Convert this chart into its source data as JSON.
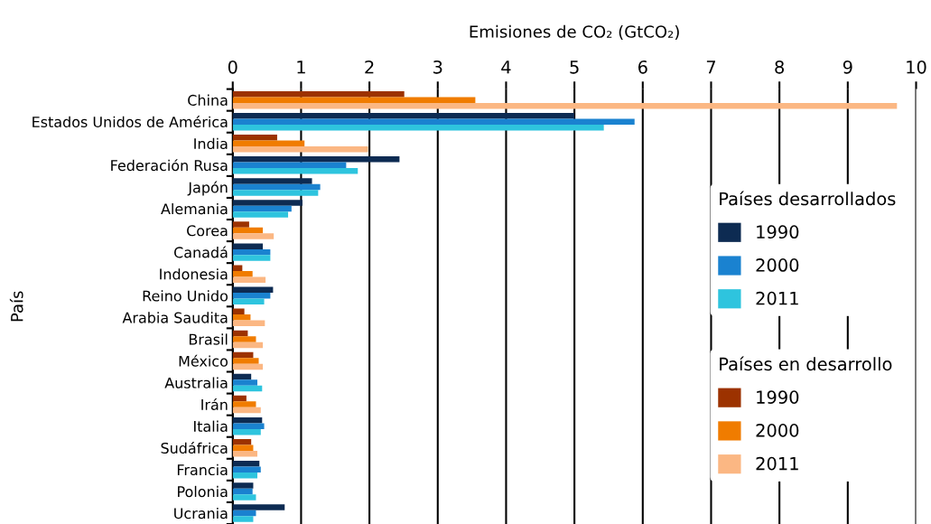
{
  "chart_data": {
    "type": "bar",
    "orientation": "horizontal",
    "xlabel": "Emisiones de CO₂ (GtCO₂)",
    "ylabel": "País",
    "categories": [
      "China",
      "Estados Unidos de América",
      "India",
      "Federación Rusa",
      "Japón",
      "Alemania",
      "Corea",
      "Canadá",
      "Indonesia",
      "Reino Unido",
      "Arabia Saudita",
      "Brasil",
      "México",
      "Australia",
      "Irán",
      "Italia",
      "Sudáfrica",
      "Francia",
      "Polonia",
      "Ucrania"
    ],
    "series": [
      {
        "name": "1990",
        "color": "#0d2b52",
        "values": [
          null,
          5.0,
          null,
          2.44,
          1.16,
          1.02,
          null,
          0.44,
          null,
          0.59,
          null,
          null,
          null,
          0.27,
          null,
          0.43,
          null,
          0.39,
          0.3,
          0.76
        ]
      },
      {
        "name": "2000",
        "color": "#1a82d0",
        "values": [
          null,
          5.88,
          null,
          1.66,
          1.28,
          0.86,
          null,
          0.55,
          null,
          0.55,
          null,
          null,
          null,
          0.36,
          null,
          0.46,
          null,
          0.41,
          0.29,
          0.34
        ]
      },
      {
        "name": "2011",
        "color": "#2ec4de",
        "values": [
          null,
          5.43,
          null,
          1.83,
          1.25,
          0.81,
          null,
          0.55,
          null,
          0.46,
          null,
          null,
          null,
          0.43,
          null,
          0.41,
          null,
          0.36,
          0.34,
          0.3
        ]
      },
      {
        "name": "1990",
        "color": "#9c3200",
        "values": [
          2.51,
          null,
          0.65,
          null,
          null,
          null,
          0.24,
          null,
          0.14,
          null,
          0.17,
          0.22,
          0.3,
          null,
          0.2,
          null,
          0.27,
          null,
          null,
          null
        ]
      },
      {
        "name": "2000",
        "color": "#f07c00",
        "values": [
          3.55,
          null,
          1.05,
          null,
          null,
          null,
          0.44,
          null,
          0.29,
          null,
          0.26,
          0.34,
          0.38,
          null,
          0.34,
          null,
          0.3,
          null,
          null,
          null
        ]
      },
      {
        "name": "2011",
        "color": "#fbb783",
        "values": [
          9.72,
          null,
          1.98,
          null,
          null,
          null,
          0.6,
          null,
          0.48,
          null,
          0.47,
          0.44,
          0.44,
          null,
          0.41,
          null,
          0.36,
          null,
          null,
          null
        ]
      }
    ],
    "annotations": [
      "Países desarrollados",
      "Países en desarrollo"
    ],
    "xlim": [
      0,
      10
    ],
    "xticks": [
      0,
      1,
      2,
      3,
      4,
      5,
      6,
      7,
      8,
      9,
      10
    ],
    "grid": "x",
    "legend": "right"
  }
}
